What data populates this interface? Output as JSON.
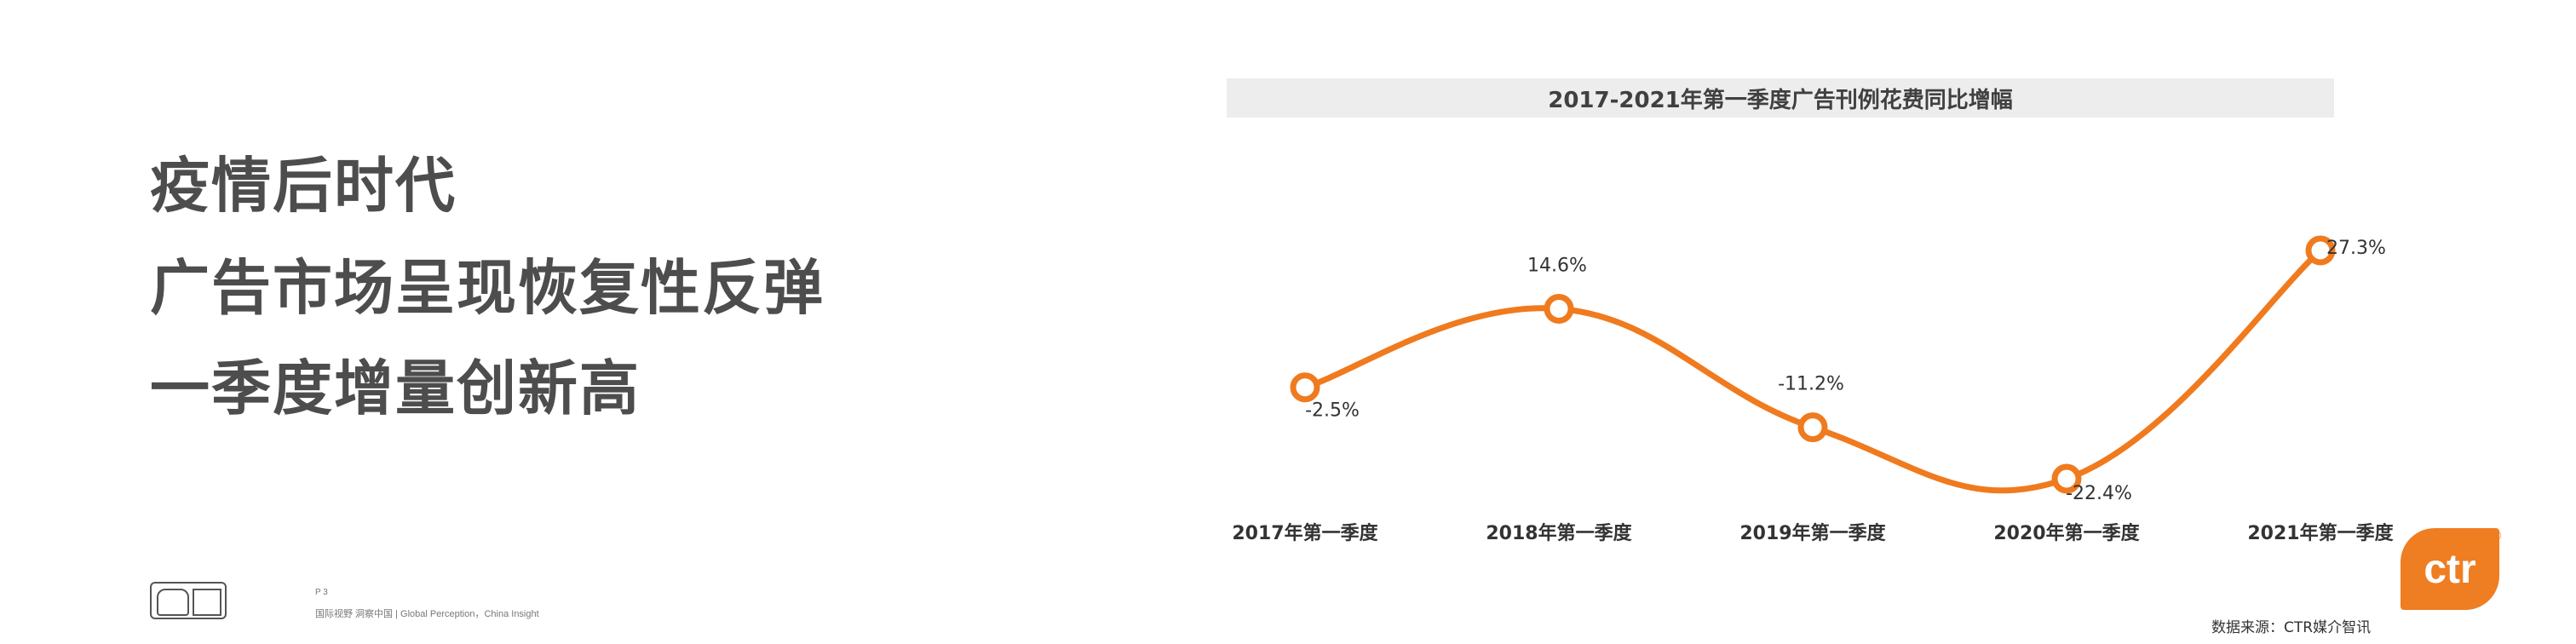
{
  "headline": {
    "line1": "疫情后时代",
    "line2": "广告市场呈现恢复性反弹",
    "line3": "一季度增量创新高"
  },
  "chart_data": {
    "type": "line",
    "title": "2017-2021年第一季度广告刊例花费同比增幅",
    "categories": [
      "2017年第一季度",
      "2018年第一季度",
      "2019年第一季度",
      "2020年第一季度",
      "2021年第一季度"
    ],
    "values": [
      -2.5,
      14.6,
      -11.2,
      -22.4,
      27.3
    ],
    "data_labels": [
      "-2.5%",
      "14.6%",
      "-11.2%",
      "-22.4%",
      "27.3%"
    ],
    "unit": "%",
    "line_color": "#f07a1e",
    "smooth": true,
    "grid": false,
    "legend": "none"
  },
  "footer": {
    "page": "P 3",
    "slogan": "国际视野  洞察中国 | Global Perception，China Insight",
    "source": "数据来源：CTR媒介智讯"
  },
  "brand": {
    "logo_text": "ctr",
    "registered_mark": "®",
    "color": "#ef7d22"
  }
}
